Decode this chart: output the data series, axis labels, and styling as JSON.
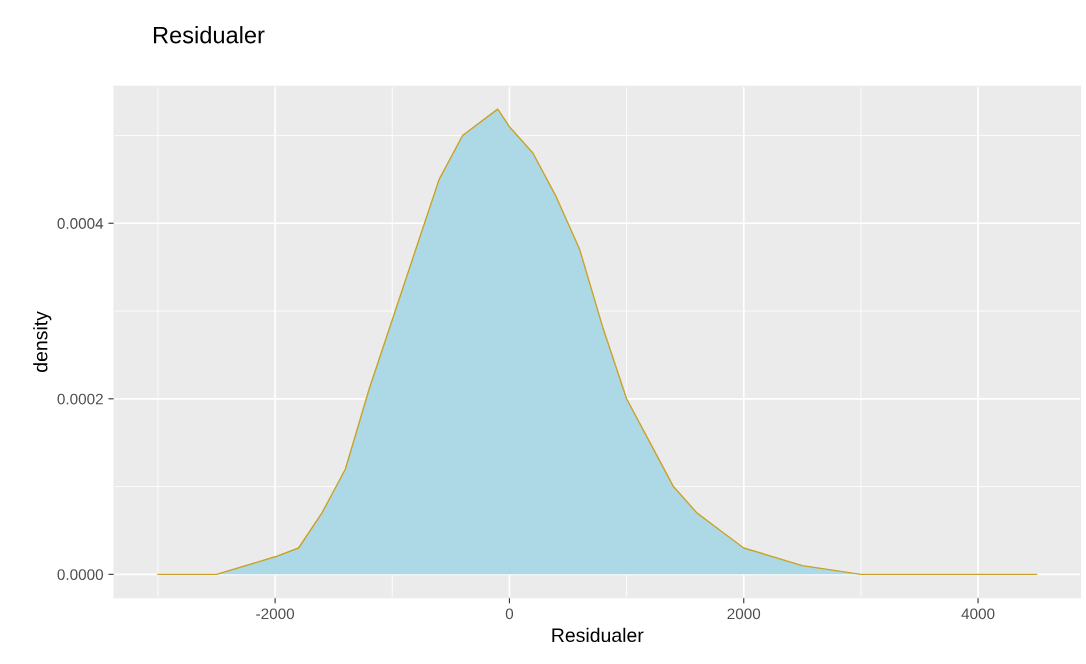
{
  "chart_data": {
    "type": "area",
    "title": "Residualer",
    "xlabel": "Residualer",
    "ylabel": "density",
    "x": [
      -3000,
      -2500,
      -2000,
      -1800,
      -1600,
      -1400,
      -1200,
      -1000,
      -800,
      -600,
      -400,
      -200,
      -100,
      0,
      200,
      400,
      600,
      800,
      1000,
      1200,
      1400,
      1600,
      1800,
      2000,
      2500,
      3000,
      3500,
      4000,
      4500
    ],
    "series": [
      {
        "color": "#add8e6",
        "values": [
          0,
          0,
          2e-05,
          3e-05,
          7e-05,
          0.00012,
          0.00021,
          0.00029,
          0.00037,
          0.00045,
          0.0005,
          0.00052,
          0.00053,
          0.00051,
          0.00048,
          0.00043,
          0.00037,
          0.00028,
          0.0002,
          0.00015,
          0.0001,
          7e-05,
          5e-05,
          3e-05,
          1e-05,
          0,
          0,
          0,
          0
        ]
      }
    ],
    "xlim": [
      -3375,
      4875
    ],
    "ylim": [
      -2.65e-05,
      0.000556
    ],
    "xticks": [
      -2000,
      0,
      2000,
      4000
    ],
    "yticks": [
      {
        "value": 0,
        "label": "0.0000"
      },
      {
        "value": 0.0002,
        "label": "0.0002"
      },
      {
        "value": 0.0004,
        "label": "0.0004"
      }
    ],
    "grid": true
  }
}
